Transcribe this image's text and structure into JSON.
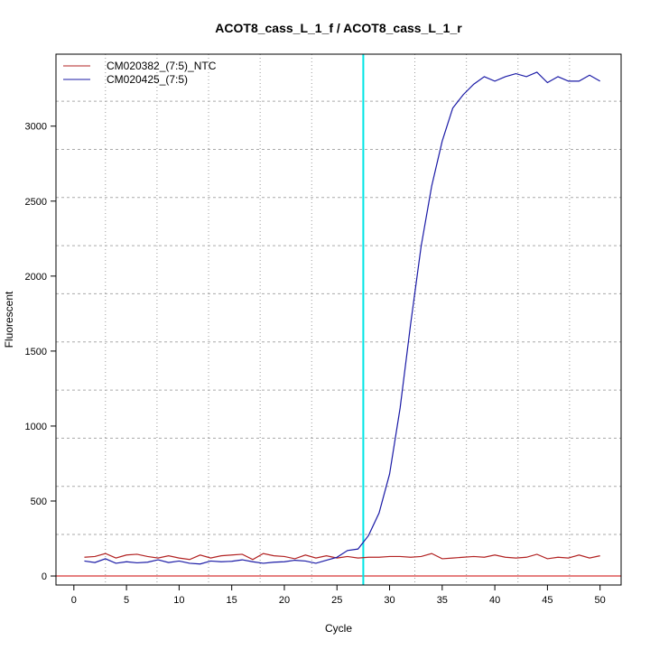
{
  "chart_data": {
    "type": "line",
    "title": "ACOT8_cass_L_1_f / ACOT8_cass_L_1_r",
    "xlabel": "Cycle",
    "ylabel": "Fluorescent",
    "xlim": [
      -1.7,
      52
    ],
    "ylim": [
      -60,
      3480
    ],
    "xticks": [
      0,
      5,
      10,
      15,
      20,
      25,
      30,
      35,
      40,
      45,
      50
    ],
    "yticks": [
      0,
      500,
      1000,
      1500,
      2000,
      2500,
      3000
    ],
    "grid": true,
    "legend": "top-left",
    "threshold_cycle": 27.5,
    "threshold_color": "#00e5e5",
    "baseline": 0,
    "baseline_color": "#cc0000",
    "x": [
      1,
      2,
      3,
      4,
      5,
      6,
      7,
      8,
      9,
      10,
      11,
      12,
      13,
      14,
      15,
      16,
      17,
      18,
      19,
      20,
      21,
      22,
      23,
      24,
      25,
      26,
      27,
      28,
      29,
      30,
      31,
      32,
      33,
      34,
      35,
      36,
      37,
      38,
      39,
      40,
      41,
      42,
      43,
      44,
      45,
      46,
      47,
      48,
      49,
      50
    ],
    "series": [
      {
        "name": "CM020382_(7:5)_NTC",
        "color": "#b22222",
        "values": [
          125,
          130,
          150,
          120,
          140,
          145,
          130,
          120,
          135,
          120,
          110,
          140,
          120,
          135,
          140,
          145,
          110,
          150,
          135,
          130,
          115,
          140,
          120,
          135,
          120,
          130,
          120,
          125,
          125,
          130,
          130,
          125,
          130,
          150,
          115,
          120,
          125,
          130,
          125,
          140,
          125,
          120,
          125,
          145,
          115,
          125,
          120,
          140,
          120,
          135
        ]
      },
      {
        "name": "CM020425_(7:5)",
        "color": "#1a1aa6",
        "values": [
          100,
          90,
          115,
          85,
          95,
          88,
          92,
          108,
          90,
          100,
          85,
          80,
          100,
          95,
          98,
          108,
          95,
          85,
          92,
          95,
          105,
          100,
          85,
          105,
          125,
          170,
          180,
          270,
          420,
          680,
          1120,
          1680,
          2200,
          2600,
          2900,
          3120,
          3210,
          3280,
          3330,
          3300,
          3330,
          3350,
          3330,
          3360,
          3290,
          3330,
          3300,
          3300,
          3340,
          3300
        ]
      }
    ]
  }
}
